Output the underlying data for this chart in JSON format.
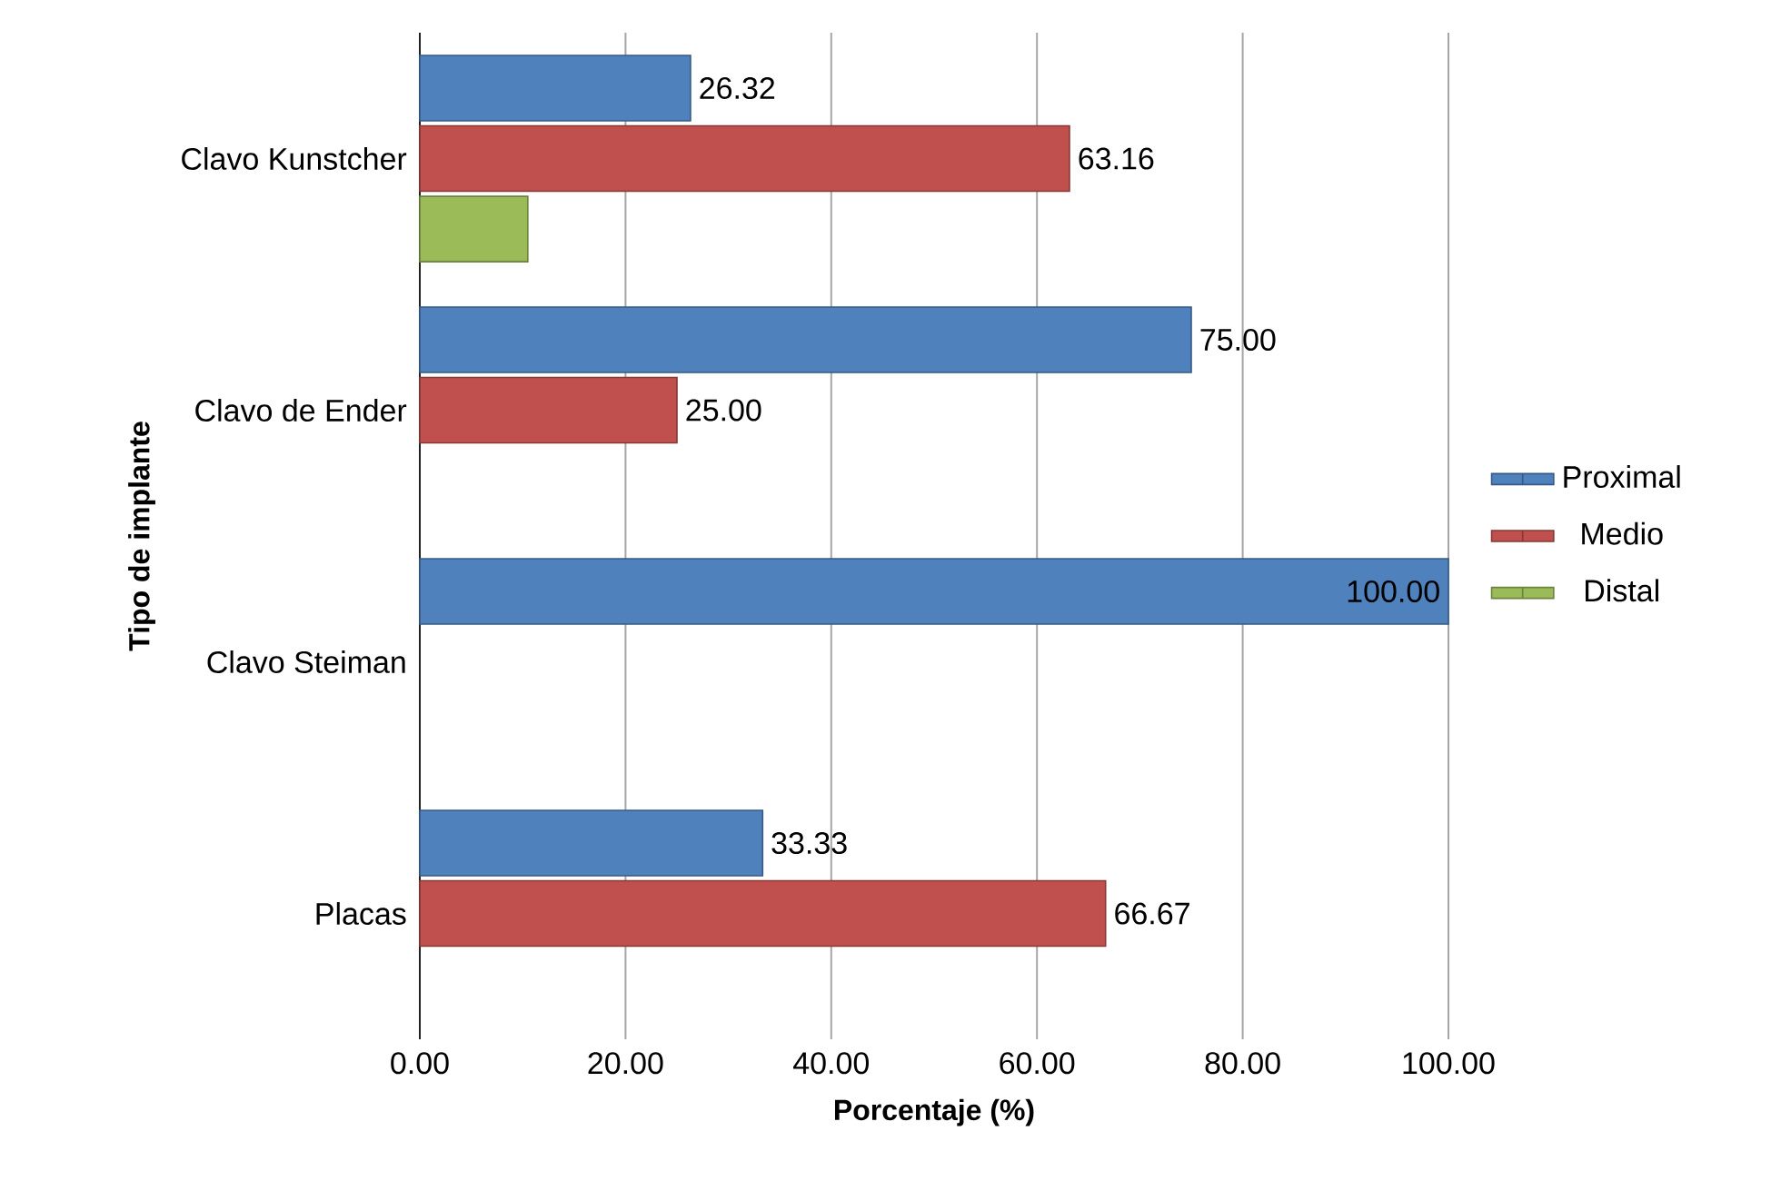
{
  "chart_data": {
    "type": "bar",
    "orientation": "horizontal",
    "xlabel": "Porcentaje (%)",
    "ylabel": "Tipo de implante",
    "categories": [
      "Clavo Kunstcher",
      "Clavo de Ender",
      "Clavo Steiman",
      "Placas"
    ],
    "series": [
      {
        "name": "Proximal",
        "color": "#4f81bd",
        "values": [
          26.32,
          75.0,
          100.0,
          33.33
        ],
        "value_labels": [
          "26.32",
          "75.00",
          "100.00",
          "33.33"
        ]
      },
      {
        "name": "Medio",
        "color": "#c0504d",
        "values": [
          63.16,
          25.0,
          null,
          66.67
        ],
        "value_labels": [
          "63.16",
          "25.00",
          null,
          "66.67"
        ]
      },
      {
        "name": "Distal",
        "color": "#9bbb59",
        "values": [
          10.5,
          null,
          null,
          null
        ],
        "value_labels": [
          null,
          null,
          null,
          null
        ]
      }
    ],
    "xlim": [
      0,
      100
    ],
    "xticks": [
      {
        "value": 0,
        "label": "0.00"
      },
      {
        "value": 20,
        "label": "20.00"
      },
      {
        "value": 40,
        "label": "40.00"
      },
      {
        "value": 60,
        "label": "60.00"
      },
      {
        "value": 80,
        "label": "80.00"
      },
      {
        "value": 100,
        "label": "100.00"
      }
    ],
    "grid": "x",
    "legend": "right"
  }
}
